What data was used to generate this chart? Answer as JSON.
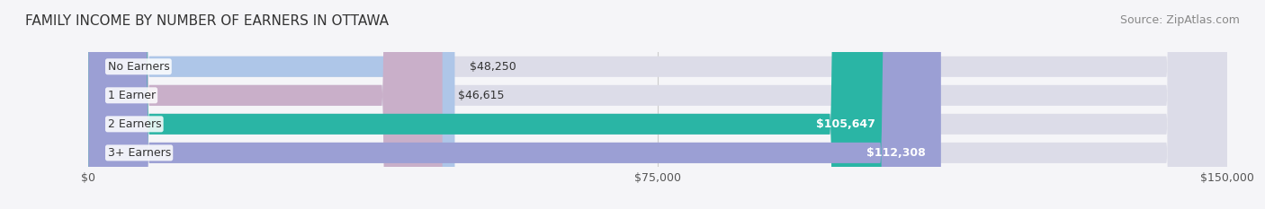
{
  "title": "FAMILY INCOME BY NUMBER OF EARNERS IN OTTAWA",
  "source": "Source: ZipAtlas.com",
  "categories": [
    "No Earners",
    "1 Earner",
    "2 Earners",
    "3+ Earners"
  ],
  "values": [
    48250,
    46615,
    105647,
    112308
  ],
  "bar_colors": [
    "#aec6e8",
    "#c9afc9",
    "#2ab5a5",
    "#9b9fd4"
  ],
  "bar_bg_color": "#e8e8ee",
  "value_labels": [
    "$48,250",
    "$46,615",
    "$105,647",
    "$112,308"
  ],
  "xlim": [
    0,
    150000
  ],
  "xticks": [
    0,
    75000,
    150000
  ],
  "xtick_labels": [
    "$0",
    "$75,000",
    "$150,000"
  ],
  "title_fontsize": 11,
  "source_fontsize": 9,
  "label_fontsize": 9,
  "value_fontsize": 9,
  "background_color": "#f5f5f8",
  "bar_background_color": "#dcdce8"
}
